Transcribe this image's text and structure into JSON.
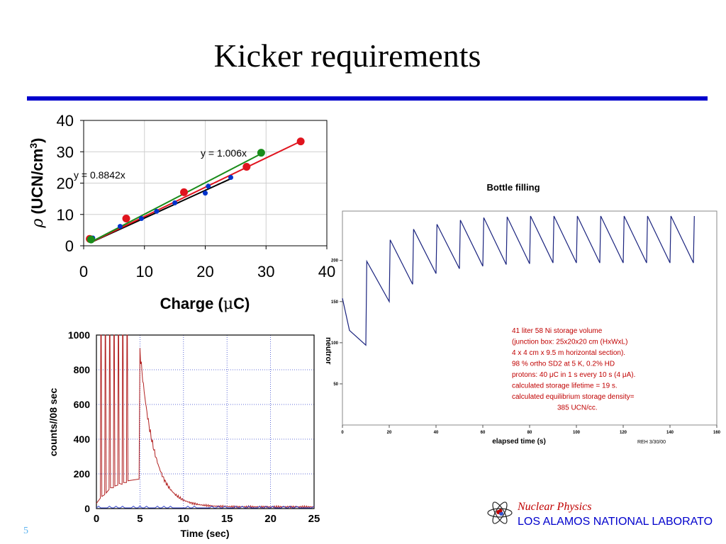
{
  "slide": {
    "title": "Kicker requirements",
    "number": "5"
  },
  "footer": {
    "line1": "Nuclear Physics",
    "line2": "LOS ALAMOS NATIONAL LABORATO",
    "logo_icon": "atom-icon"
  },
  "colors": {
    "rule": "#0000cc",
    "blue": "#0033cc",
    "red": "#e0141e",
    "green": "#1a8c1a",
    "black": "#000000",
    "decay_trace": "#b22222",
    "bottle_trace": "#1a237e",
    "note_text": "#c00000"
  },
  "chart_data": [
    {
      "type": "scatter",
      "xlabel_parts": [
        "Charge (",
        "μ",
        "C)"
      ],
      "ylabel_parts": [
        "ρ",
        "(UCN/cm",
        "3",
        ")"
      ],
      "xlim": [
        0,
        40
      ],
      "ylim": [
        0,
        40
      ],
      "xticks": [
        "0",
        "10",
        "20",
        "30",
        "40"
      ],
      "yticks": [
        "0",
        "10",
        "20",
        "30",
        "40"
      ],
      "grid": true,
      "series": [
        {
          "color": "blue",
          "points": [
            [
              1.2,
              2.0
            ],
            [
              1.5,
              2.5
            ],
            [
              6,
              6.2
            ],
            [
              9.5,
              8.7
            ],
            [
              12,
              11
            ],
            [
              15,
              13.7
            ],
            [
              20,
              16.8
            ],
            [
              20.5,
              19
            ],
            [
              24.2,
              21.8
            ]
          ]
        },
        {
          "color": "red",
          "points": [
            [
              1,
              2.2
            ],
            [
              7,
              8.7
            ],
            [
              16.5,
              17.1
            ],
            [
              26.8,
              25.2
            ],
            [
              35.7,
              33.3
            ]
          ]
        },
        {
          "color": "green",
          "points": [
            [
              1.2,
              2
            ],
            [
              29.2,
              29.7
            ]
          ]
        }
      ],
      "fits": [
        {
          "color": "black",
          "slope": 0.8842,
          "x": [
            1.5,
            24.2
          ]
        },
        {
          "color": "red",
          "slope": 0.9338,
          "x": [
            1.5,
            35.7
          ]
        },
        {
          "color": "green",
          "slope": 1.006,
          "x": [
            1.5,
            29.2
          ]
        }
      ],
      "annotations": [
        "y = 1.006x",
        "y = 0.8842x"
      ]
    },
    {
      "type": "line",
      "title": "Bottle filling",
      "xlabel": "elapsed time (s)",
      "ylabel": "neutror",
      "xlim": [
        0,
        160
      ],
      "ylim": [
        0,
        260
      ],
      "xticks": [
        "0",
        "20",
        "40",
        "60",
        "80",
        "100",
        "120",
        "140",
        "160"
      ],
      "yticks": [
        "50",
        "100",
        "150",
        "200"
      ],
      "fill_start": 154,
      "initial_level": 115,
      "valley_level": 97,
      "cycles": [
        {
          "t": 10,
          "low": 97,
          "peak": 199
        },
        {
          "t": 20,
          "low": 150,
          "peak": 225
        },
        {
          "t": 30,
          "low": 171,
          "peak": 238
        },
        {
          "t": 40,
          "low": 184,
          "peak": 244
        },
        {
          "t": 50,
          "low": 190,
          "peak": 249
        },
        {
          "t": 60,
          "low": 193,
          "peak": 252
        },
        {
          "t": 70,
          "low": 195,
          "peak": 253
        },
        {
          "t": 80,
          "low": 196,
          "peak": 254
        },
        {
          "t": 90,
          "low": 197,
          "peak": 254
        },
        {
          "t": 100,
          "low": 197,
          "peak": 254
        },
        {
          "t": 110,
          "low": 197,
          "peak": 254
        },
        {
          "t": 120,
          "low": 197,
          "peak": 254
        },
        {
          "t": 130,
          "low": 197,
          "peak": 254
        },
        {
          "t": 140,
          "low": 197,
          "peak": 254
        },
        {
          "t": 150,
          "low": 197,
          "peak": 254
        }
      ],
      "note": [
        "41 liter  58 Ni storage volume",
        "(junction box: 25x20x20 cm (HxWxL)",
        "4 x 4 cm x 9.5 m horizontal section).",
        "98 % ortho SD2 at 5 K, 0.2% HD",
        "protons: 40  μC in 1 s every 10 s (4      μA).",
        "calculated storage lifetime = 19 s.",
        "calculated equilibrium storage density=",
        "385 UCN/cc."
      ],
      "credit": "REH 3/30/00"
    },
    {
      "type": "line",
      "xlabel": "Time (sec)",
      "ylabel": "counts//08 sec",
      "xlim": [
        0,
        25
      ],
      "ylim": [
        0,
        1000
      ],
      "xticks": [
        "0",
        "5",
        "10",
        "15",
        "20",
        "25"
      ],
      "yticks": [
        "0",
        "200",
        "400",
        "600",
        "800",
        "1000"
      ],
      "grid": true,
      "spike_times": [
        0.5,
        1.0,
        1.5,
        2.0,
        2.5,
        3.0,
        3.5
      ],
      "spike_baselines": [
        60,
        80,
        110,
        120,
        135,
        140,
        150
      ],
      "decay": {
        "start": 5.0,
        "peak": 900,
        "tau": 1.6,
        "floor": 10
      }
    }
  ]
}
